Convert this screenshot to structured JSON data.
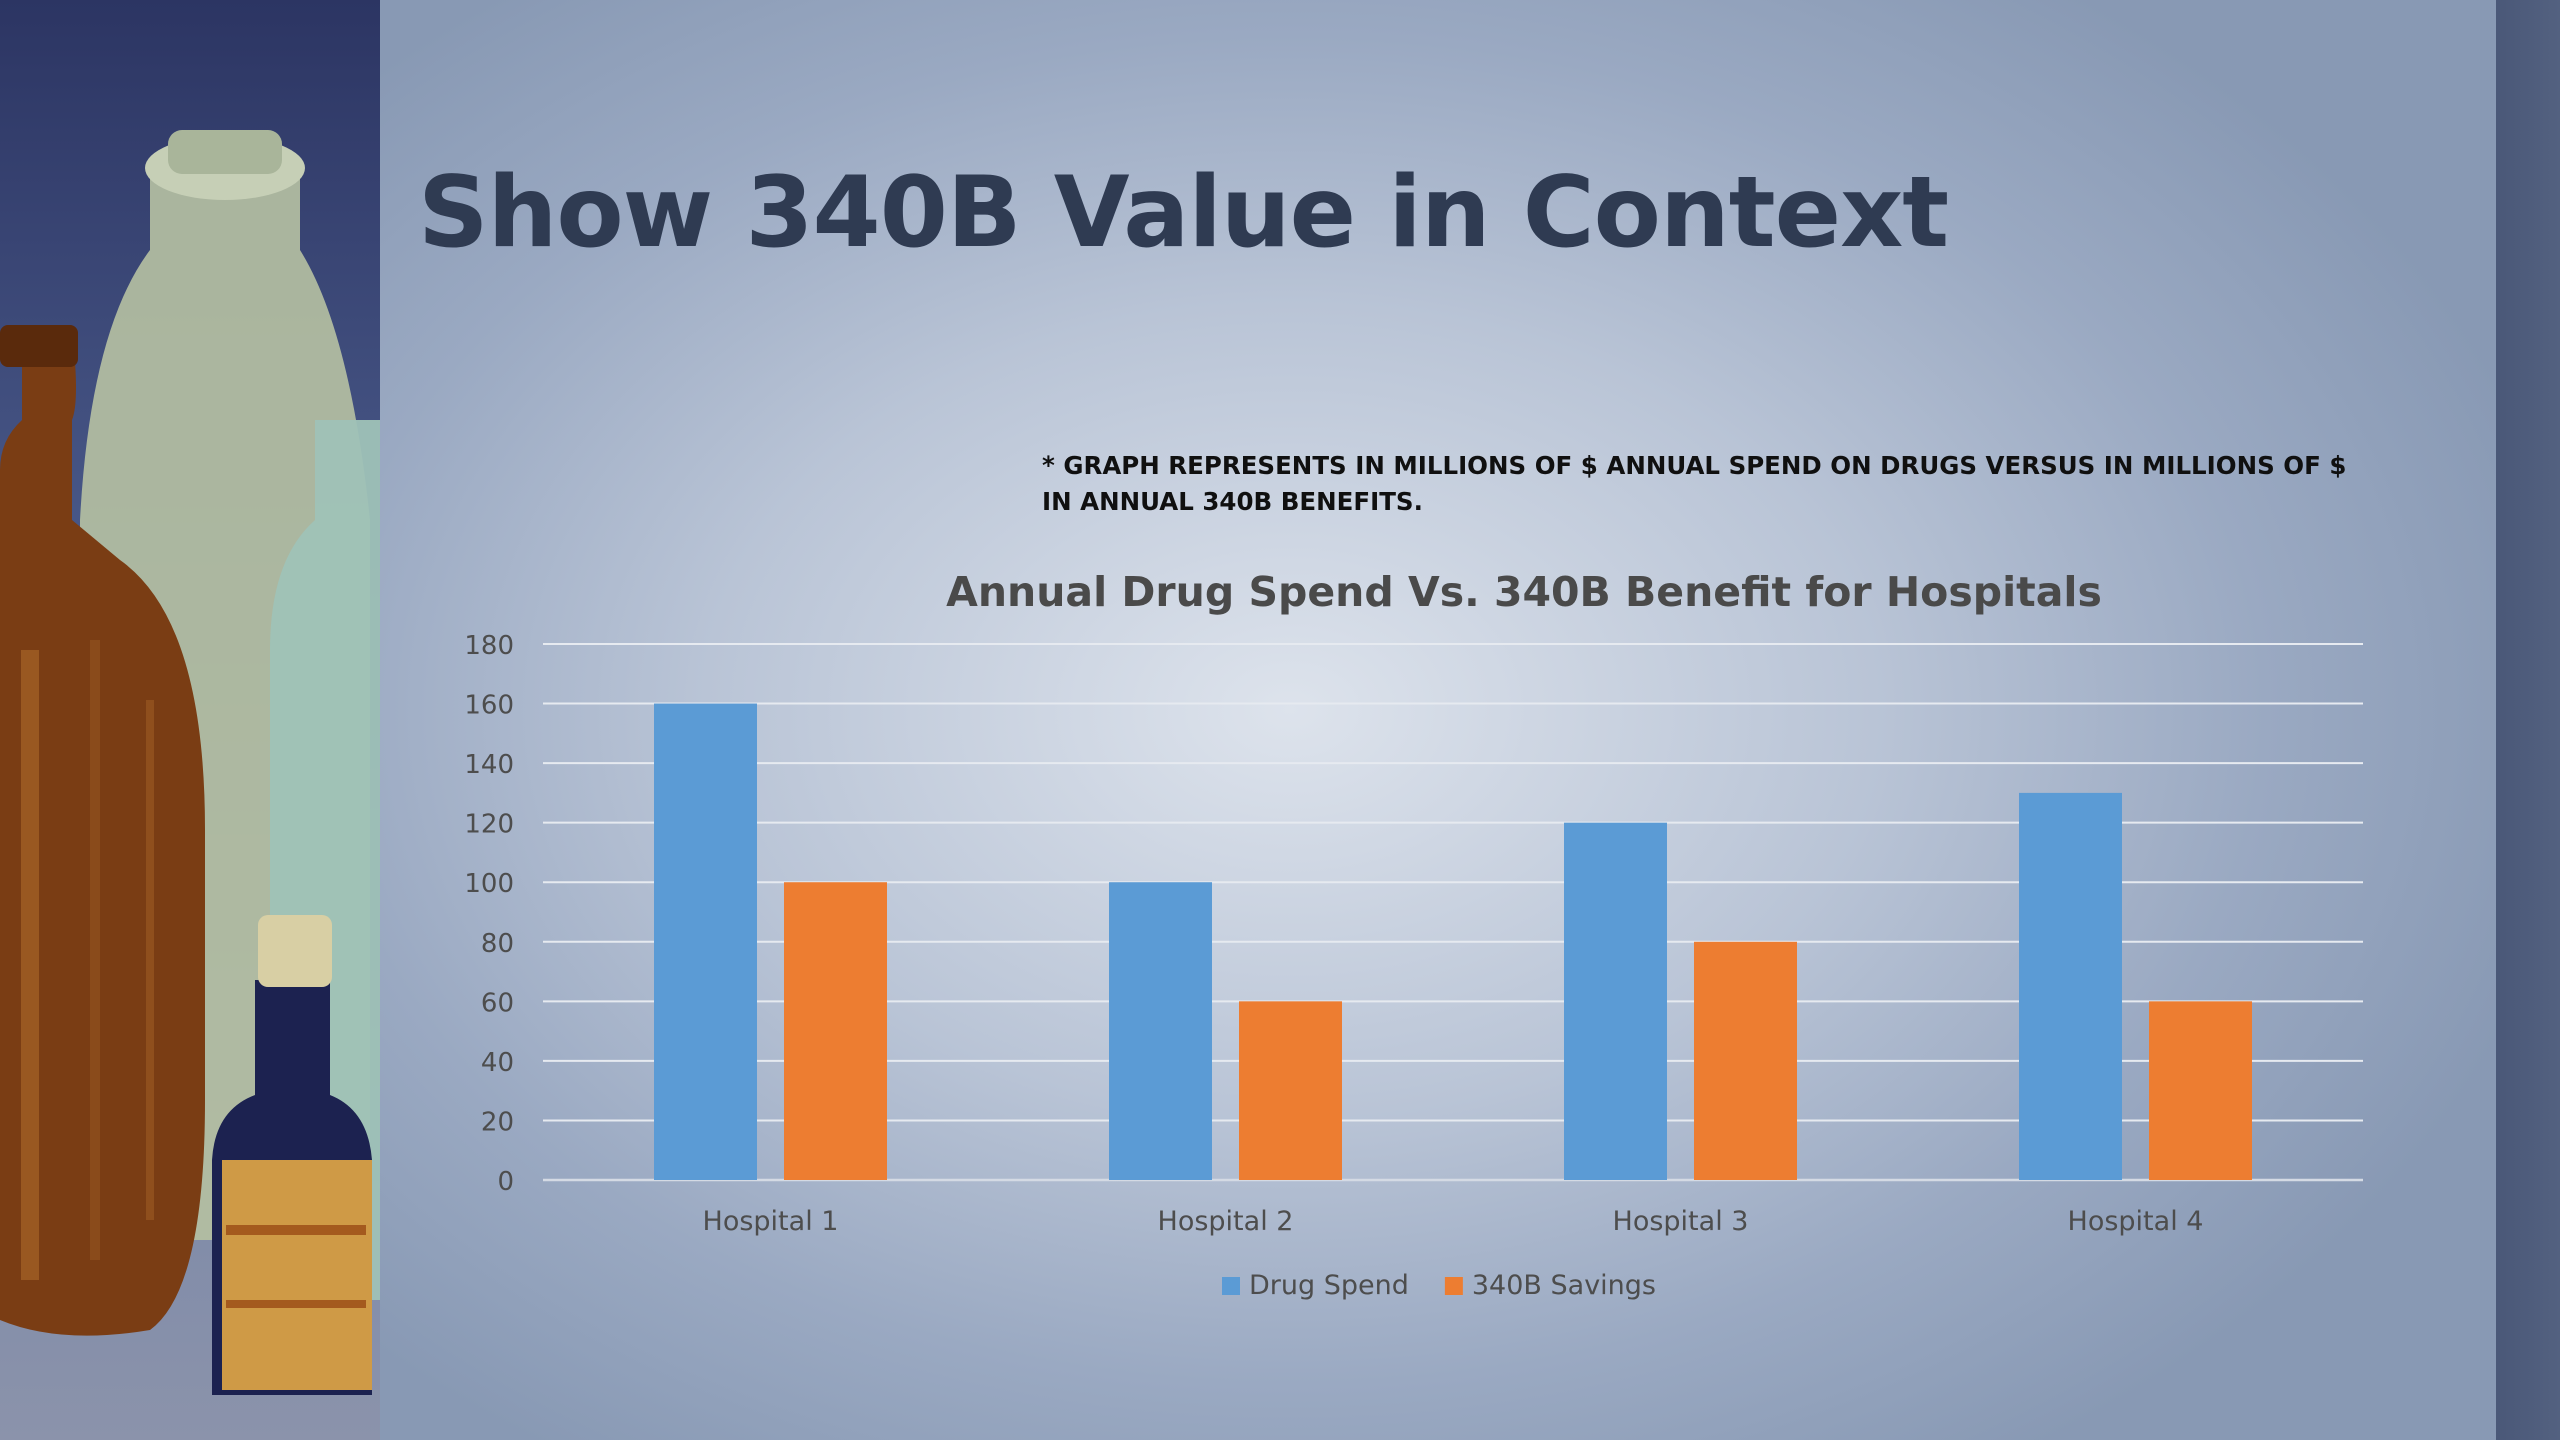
{
  "slide": {
    "title": "Show 340B Value in Context",
    "note": "* GRAPH REPRESENTS IN MILLIONS OF $ ANNUAL SPEND ON DRUGS VERSUS IN MILLIONS OF $ IN ANNUAL 340B BENEFITS."
  },
  "chart_data": {
    "type": "bar",
    "title": "Annual Drug Spend Vs. 340B Benefit for Hospitals",
    "xlabel": "",
    "ylabel": "",
    "categories": [
      "Hospital 1",
      "Hospital 2",
      "Hospital 3",
      "Hospital 4"
    ],
    "series": [
      {
        "name": "Drug Spend",
        "values": [
          160,
          100,
          120,
          130
        ],
        "color": "#5b9bd5"
      },
      {
        "name": "340B Savings",
        "values": [
          100,
          60,
          80,
          60
        ],
        "color": "#ed7d31"
      }
    ],
    "ylim": [
      0,
      180
    ],
    "yticks": [
      0,
      20,
      40,
      60,
      80,
      100,
      120,
      140,
      160,
      180
    ],
    "grid": true,
    "legend": "bottom"
  }
}
